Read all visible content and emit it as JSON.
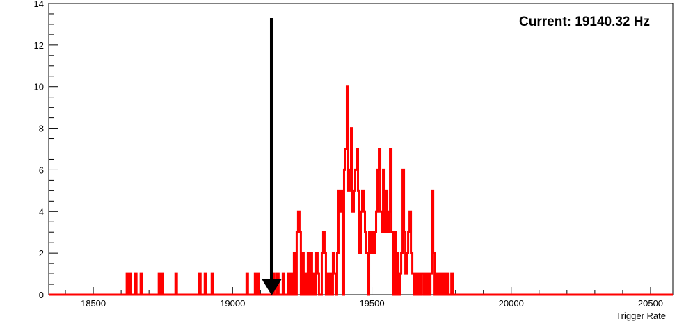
{
  "chart_data": {
    "type": "histogram",
    "title": "",
    "xlabel": "Trigger Rate",
    "ylabel": "",
    "xlim": [
      18340,
      20580
    ],
    "ylim": [
      0,
      14
    ],
    "x_ticks": [
      18500,
      19000,
      19500,
      20000,
      20500
    ],
    "y_ticks": [
      0,
      2,
      4,
      6,
      8,
      10,
      12,
      14
    ],
    "grid": false,
    "bin_width": 5,
    "series": [
      {
        "color": "#ff0000",
        "bins": [
          {
            "x": 18620,
            "count": 1
          },
          {
            "x": 18630,
            "count": 1
          },
          {
            "x": 18650,
            "count": 1
          },
          {
            "x": 18670,
            "count": 1
          },
          {
            "x": 18735,
            "count": 1
          },
          {
            "x": 18745,
            "count": 1
          },
          {
            "x": 18795,
            "count": 1
          },
          {
            "x": 18880,
            "count": 1
          },
          {
            "x": 18900,
            "count": 1
          },
          {
            "x": 18925,
            "count": 1
          },
          {
            "x": 19050,
            "count": 1
          },
          {
            "x": 19080,
            "count": 1
          },
          {
            "x": 19090,
            "count": 1
          },
          {
            "x": 19145,
            "count": 1
          },
          {
            "x": 19160,
            "count": 1
          },
          {
            "x": 19180,
            "count": 1
          },
          {
            "x": 19200,
            "count": 1
          },
          {
            "x": 19210,
            "count": 1
          },
          {
            "x": 19220,
            "count": 2
          },
          {
            "x": 19230,
            "count": 3
          },
          {
            "x": 19235,
            "count": 4
          },
          {
            "x": 19240,
            "count": 3
          },
          {
            "x": 19250,
            "count": 2
          },
          {
            "x": 19260,
            "count": 1
          },
          {
            "x": 19270,
            "count": 2
          },
          {
            "x": 19280,
            "count": 2
          },
          {
            "x": 19290,
            "count": 1
          },
          {
            "x": 19300,
            "count": 2
          },
          {
            "x": 19305,
            "count": 1
          },
          {
            "x": 19320,
            "count": 2
          },
          {
            "x": 19325,
            "count": 3
          },
          {
            "x": 19330,
            "count": 2
          },
          {
            "x": 19340,
            "count": 1
          },
          {
            "x": 19350,
            "count": 1
          },
          {
            "x": 19360,
            "count": 2
          },
          {
            "x": 19365,
            "count": 1
          },
          {
            "x": 19375,
            "count": 2
          },
          {
            "x": 19380,
            "count": 5
          },
          {
            "x": 19385,
            "count": 4
          },
          {
            "x": 19390,
            "count": 5
          },
          {
            "x": 19400,
            "count": 6
          },
          {
            "x": 19405,
            "count": 7
          },
          {
            "x": 19410,
            "count": 10
          },
          {
            "x": 19415,
            "count": 5
          },
          {
            "x": 19420,
            "count": 6
          },
          {
            "x": 19425,
            "count": 8
          },
          {
            "x": 19430,
            "count": 4
          },
          {
            "x": 19435,
            "count": 5
          },
          {
            "x": 19440,
            "count": 6
          },
          {
            "x": 19445,
            "count": 7
          },
          {
            "x": 19450,
            "count": 5
          },
          {
            "x": 19455,
            "count": 2
          },
          {
            "x": 19460,
            "count": 4
          },
          {
            "x": 19465,
            "count": 5
          },
          {
            "x": 19470,
            "count": 4
          },
          {
            "x": 19475,
            "count": 3
          },
          {
            "x": 19480,
            "count": 2
          },
          {
            "x": 19490,
            "count": 3
          },
          {
            "x": 19495,
            "count": 2
          },
          {
            "x": 19500,
            "count": 3
          },
          {
            "x": 19505,
            "count": 2
          },
          {
            "x": 19510,
            "count": 3
          },
          {
            "x": 19515,
            "count": 4
          },
          {
            "x": 19520,
            "count": 6
          },
          {
            "x": 19525,
            "count": 7
          },
          {
            "x": 19530,
            "count": 4
          },
          {
            "x": 19535,
            "count": 3
          },
          {
            "x": 19540,
            "count": 6
          },
          {
            "x": 19545,
            "count": 3
          },
          {
            "x": 19550,
            "count": 5
          },
          {
            "x": 19555,
            "count": 3
          },
          {
            "x": 19560,
            "count": 4
          },
          {
            "x": 19565,
            "count": 7
          },
          {
            "x": 19570,
            "count": 3
          },
          {
            "x": 19580,
            "count": 3
          },
          {
            "x": 19590,
            "count": 2
          },
          {
            "x": 19600,
            "count": 1
          },
          {
            "x": 19605,
            "count": 2
          },
          {
            "x": 19610,
            "count": 6
          },
          {
            "x": 19615,
            "count": 3
          },
          {
            "x": 19620,
            "count": 1
          },
          {
            "x": 19625,
            "count": 2
          },
          {
            "x": 19630,
            "count": 3
          },
          {
            "x": 19635,
            "count": 4
          },
          {
            "x": 19640,
            "count": 2
          },
          {
            "x": 19645,
            "count": 1
          },
          {
            "x": 19655,
            "count": 1
          },
          {
            "x": 19665,
            "count": 1
          },
          {
            "x": 19675,
            "count": 1
          },
          {
            "x": 19680,
            "count": 1
          },
          {
            "x": 19690,
            "count": 1
          },
          {
            "x": 19700,
            "count": 1
          },
          {
            "x": 19710,
            "count": 1
          },
          {
            "x": 19715,
            "count": 5
          },
          {
            "x": 19720,
            "count": 2
          },
          {
            "x": 19730,
            "count": 1
          },
          {
            "x": 19740,
            "count": 1
          },
          {
            "x": 19750,
            "count": 1
          },
          {
            "x": 19760,
            "count": 1
          },
          {
            "x": 19770,
            "count": 1
          },
          {
            "x": 19785,
            "count": 1
          }
        ]
      }
    ],
    "annotations": [
      {
        "text": "Current: 19140.32 Hz",
        "placement": "top-right"
      }
    ],
    "marker": {
      "type": "downward-arrow",
      "x": 19140.32,
      "y_top": 13.3,
      "y_bottom": 0
    }
  }
}
